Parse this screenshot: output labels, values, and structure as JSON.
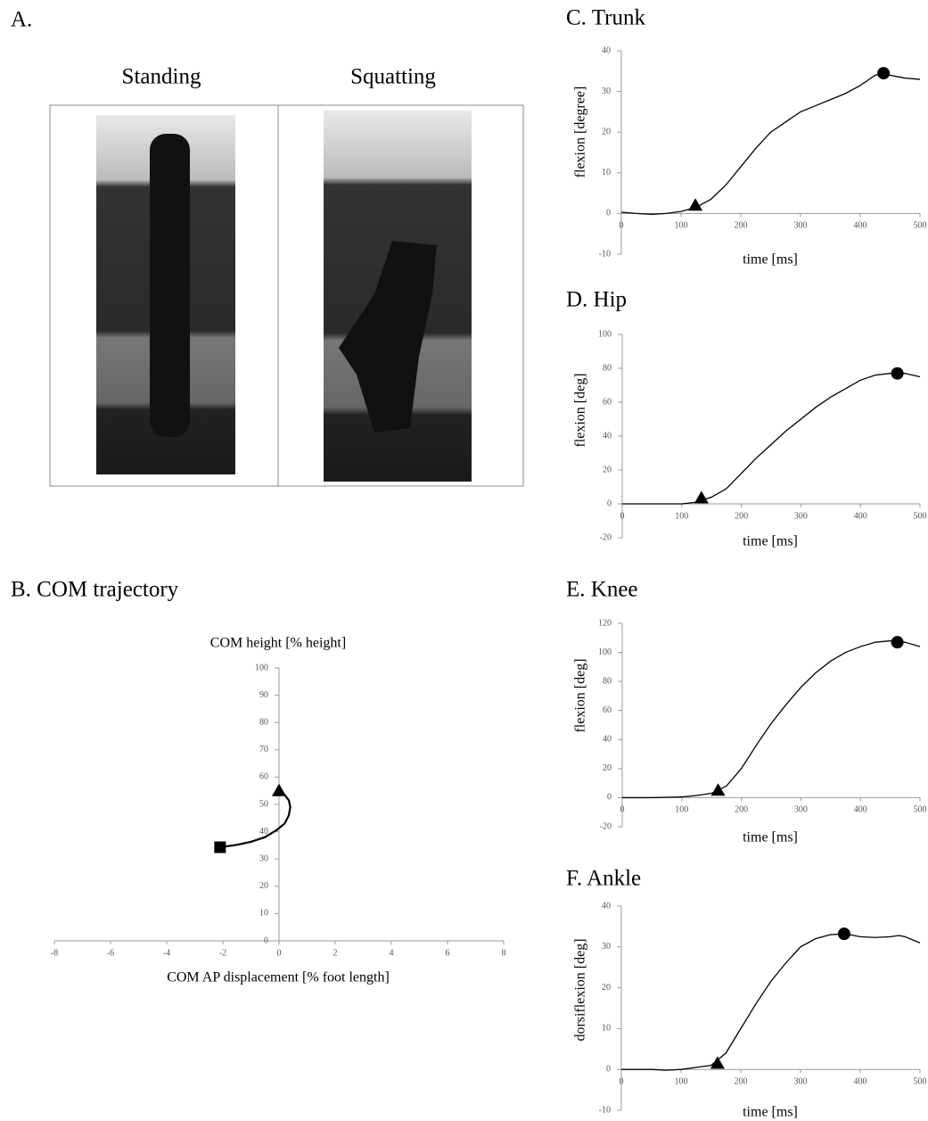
{
  "panel_a": {
    "label": "A.",
    "captions": [
      "Standing",
      "Squatting"
    ]
  },
  "chart_data": [
    {
      "type": "line",
      "title": "B. COM trajectory",
      "x_label": "COM AP displacement [% foot length]",
      "y_label": "COM height [% height]",
      "xlim": [
        -8,
        8
      ],
      "xticks": [
        -8,
        -6,
        -4,
        -2,
        0,
        2,
        4,
        6,
        8
      ],
      "ylim": [
        0,
        100
      ],
      "yticks": [
        0,
        10,
        20,
        30,
        40,
        50,
        60,
        70,
        80,
        90,
        100
      ],
      "series": [
        {
          "color": "#000000",
          "x": [
            -2.1,
            -1.5,
            -1,
            -0.5,
            -0.1,
            0.2,
            0.35,
            0.4,
            0.35,
            0.2,
            0
          ],
          "values": [
            34.3,
            35.2,
            36.3,
            38,
            40.5,
            43,
            46,
            49,
            51.5,
            53.5,
            55
          ]
        }
      ],
      "markers": [
        {
          "shape": "square",
          "x": -2.1,
          "y": 34.3
        },
        {
          "shape": "triangle",
          "x": 0,
          "y": 55
        }
      ]
    },
    {
      "type": "line",
      "title": "C. Trunk",
      "x_label": "time [ms]",
      "y_label": "flexion [degree]",
      "xlim": [
        0,
        500
      ],
      "xticks": [
        0,
        100,
        200,
        300,
        400,
        500
      ],
      "ylim": [
        -10,
        40
      ],
      "yticks": [
        -10,
        0,
        10,
        20,
        30,
        40
      ],
      "series": [
        {
          "color": "#000000",
          "x": [
            0,
            25,
            50,
            75,
            100,
            125,
            150,
            175,
            200,
            225,
            250,
            275,
            300,
            325,
            350,
            375,
            400,
            425,
            440,
            450,
            475,
            500
          ],
          "values": [
            0.3,
            0,
            -0.2,
            0,
            0.5,
            1.5,
            3.5,
            7,
            11.5,
            16,
            20,
            22.5,
            25,
            26.5,
            28,
            29.5,
            31.5,
            34,
            34.5,
            34,
            33.3,
            33
          ]
        }
      ],
      "markers": [
        {
          "shape": "triangle",
          "x": 124,
          "y": 2
        },
        {
          "shape": "circle",
          "x": 439,
          "y": 34.5
        }
      ]
    },
    {
      "type": "line",
      "title": "D. Hip",
      "x_label": "time [ms]",
      "y_label": "flexion [deg]",
      "xlim": [
        0,
        500
      ],
      "xticks": [
        0,
        100,
        200,
        300,
        400,
        500
      ],
      "ylim": [
        -20,
        100
      ],
      "yticks": [
        -20,
        0,
        20,
        40,
        60,
        80,
        100
      ],
      "series": [
        {
          "color": "#000000",
          "x": [
            0,
            50,
            100,
            125,
            150,
            175,
            200,
            225,
            250,
            275,
            300,
            325,
            350,
            375,
            400,
            425,
            450,
            475,
            500
          ],
          "values": [
            0,
            0,
            0,
            1,
            4,
            9,
            18,
            27,
            35,
            43,
            50,
            57,
            63,
            68,
            73,
            76,
            77,
            77,
            75
          ]
        }
      ],
      "markers": [
        {
          "shape": "triangle",
          "x": 133,
          "y": 3.5
        },
        {
          "shape": "circle",
          "x": 462,
          "y": 77
        }
      ]
    },
    {
      "type": "line",
      "title": "E. Knee",
      "x_label": "time [ms]",
      "y_label": "flexion [deg]",
      "xlim": [
        0,
        500
      ],
      "xticks": [
        0,
        100,
        200,
        300,
        400,
        500
      ],
      "ylim": [
        -20,
        120
      ],
      "yticks": [
        -20,
        0,
        20,
        40,
        60,
        80,
        100,
        120
      ],
      "series": [
        {
          "color": "#000000",
          "x": [
            0,
            50,
            100,
            125,
            150,
            175,
            200,
            225,
            250,
            275,
            300,
            325,
            350,
            375,
            400,
            425,
            450,
            475,
            500
          ],
          "values": [
            0,
            0,
            0.5,
            1.5,
            3,
            8,
            20,
            36,
            51,
            64,
            76,
            86,
            94,
            100,
            104,
            107,
            108,
            107,
            104
          ]
        }
      ],
      "markers": [
        {
          "shape": "triangle",
          "x": 161,
          "y": 5
        },
        {
          "shape": "circle",
          "x": 462,
          "y": 107
        }
      ]
    },
    {
      "type": "line",
      "title": "F. Ankle",
      "x_label": "time [ms]",
      "y_label": "dorsiflexion [deg]",
      "xlim": [
        0,
        500
      ],
      "xticks": [
        0,
        100,
        200,
        300,
        400,
        500
      ],
      "ylim": [
        -10,
        40
      ],
      "yticks": [
        -10,
        0,
        10,
        20,
        30,
        40
      ],
      "series": [
        {
          "color": "#000000",
          "x": [
            0,
            50,
            75,
            100,
            125,
            150,
            175,
            200,
            225,
            250,
            275,
            300,
            325,
            350,
            375,
            400,
            425,
            450,
            465,
            475,
            500
          ],
          "values": [
            0,
            0,
            -0.2,
            0,
            0.5,
            1,
            4,
            10,
            16,
            21.5,
            26,
            30,
            32,
            33,
            33.2,
            32.5,
            32.3,
            32.5,
            32.8,
            32.5,
            31
          ]
        }
      ],
      "markers": [
        {
          "shape": "triangle",
          "x": 161,
          "y": 1.5
        },
        {
          "shape": "circle",
          "x": 373,
          "y": 33.2
        }
      ]
    }
  ]
}
